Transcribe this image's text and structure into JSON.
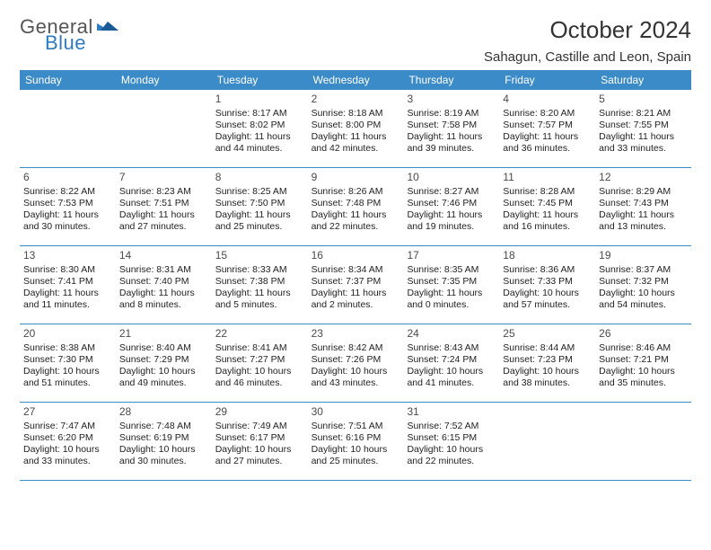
{
  "logo": {
    "line1": "General",
    "line2": "Blue"
  },
  "title": "October 2024",
  "location": "Sahagun, Castille and Leon, Spain",
  "colors": {
    "header_bg": "#3b8bc8",
    "header_text": "#ffffff",
    "row_border": "#3b8bc8",
    "title_color": "#333333",
    "body_text": "#222222",
    "logo_gray": "#555555",
    "logo_blue": "#2f7bbf",
    "background": "#ffffff"
  },
  "weekdays": [
    "Sunday",
    "Monday",
    "Tuesday",
    "Wednesday",
    "Thursday",
    "Friday",
    "Saturday"
  ],
  "weeks": [
    [
      null,
      null,
      {
        "n": "1",
        "sr": "Sunrise: 8:17 AM",
        "ss": "Sunset: 8:02 PM",
        "d1": "Daylight: 11 hours",
        "d2": "and 44 minutes."
      },
      {
        "n": "2",
        "sr": "Sunrise: 8:18 AM",
        "ss": "Sunset: 8:00 PM",
        "d1": "Daylight: 11 hours",
        "d2": "and 42 minutes."
      },
      {
        "n": "3",
        "sr": "Sunrise: 8:19 AM",
        "ss": "Sunset: 7:58 PM",
        "d1": "Daylight: 11 hours",
        "d2": "and 39 minutes."
      },
      {
        "n": "4",
        "sr": "Sunrise: 8:20 AM",
        "ss": "Sunset: 7:57 PM",
        "d1": "Daylight: 11 hours",
        "d2": "and 36 minutes."
      },
      {
        "n": "5",
        "sr": "Sunrise: 8:21 AM",
        "ss": "Sunset: 7:55 PM",
        "d1": "Daylight: 11 hours",
        "d2": "and 33 minutes."
      }
    ],
    [
      {
        "n": "6",
        "sr": "Sunrise: 8:22 AM",
        "ss": "Sunset: 7:53 PM",
        "d1": "Daylight: 11 hours",
        "d2": "and 30 minutes."
      },
      {
        "n": "7",
        "sr": "Sunrise: 8:23 AM",
        "ss": "Sunset: 7:51 PM",
        "d1": "Daylight: 11 hours",
        "d2": "and 27 minutes."
      },
      {
        "n": "8",
        "sr": "Sunrise: 8:25 AM",
        "ss": "Sunset: 7:50 PM",
        "d1": "Daylight: 11 hours",
        "d2": "and 25 minutes."
      },
      {
        "n": "9",
        "sr": "Sunrise: 8:26 AM",
        "ss": "Sunset: 7:48 PM",
        "d1": "Daylight: 11 hours",
        "d2": "and 22 minutes."
      },
      {
        "n": "10",
        "sr": "Sunrise: 8:27 AM",
        "ss": "Sunset: 7:46 PM",
        "d1": "Daylight: 11 hours",
        "d2": "and 19 minutes."
      },
      {
        "n": "11",
        "sr": "Sunrise: 8:28 AM",
        "ss": "Sunset: 7:45 PM",
        "d1": "Daylight: 11 hours",
        "d2": "and 16 minutes."
      },
      {
        "n": "12",
        "sr": "Sunrise: 8:29 AM",
        "ss": "Sunset: 7:43 PM",
        "d1": "Daylight: 11 hours",
        "d2": "and 13 minutes."
      }
    ],
    [
      {
        "n": "13",
        "sr": "Sunrise: 8:30 AM",
        "ss": "Sunset: 7:41 PM",
        "d1": "Daylight: 11 hours",
        "d2": "and 11 minutes."
      },
      {
        "n": "14",
        "sr": "Sunrise: 8:31 AM",
        "ss": "Sunset: 7:40 PM",
        "d1": "Daylight: 11 hours",
        "d2": "and 8 minutes."
      },
      {
        "n": "15",
        "sr": "Sunrise: 8:33 AM",
        "ss": "Sunset: 7:38 PM",
        "d1": "Daylight: 11 hours",
        "d2": "and 5 minutes."
      },
      {
        "n": "16",
        "sr": "Sunrise: 8:34 AM",
        "ss": "Sunset: 7:37 PM",
        "d1": "Daylight: 11 hours",
        "d2": "and 2 minutes."
      },
      {
        "n": "17",
        "sr": "Sunrise: 8:35 AM",
        "ss": "Sunset: 7:35 PM",
        "d1": "Daylight: 11 hours",
        "d2": "and 0 minutes."
      },
      {
        "n": "18",
        "sr": "Sunrise: 8:36 AM",
        "ss": "Sunset: 7:33 PM",
        "d1": "Daylight: 10 hours",
        "d2": "and 57 minutes."
      },
      {
        "n": "19",
        "sr": "Sunrise: 8:37 AM",
        "ss": "Sunset: 7:32 PM",
        "d1": "Daylight: 10 hours",
        "d2": "and 54 minutes."
      }
    ],
    [
      {
        "n": "20",
        "sr": "Sunrise: 8:38 AM",
        "ss": "Sunset: 7:30 PM",
        "d1": "Daylight: 10 hours",
        "d2": "and 51 minutes."
      },
      {
        "n": "21",
        "sr": "Sunrise: 8:40 AM",
        "ss": "Sunset: 7:29 PM",
        "d1": "Daylight: 10 hours",
        "d2": "and 49 minutes."
      },
      {
        "n": "22",
        "sr": "Sunrise: 8:41 AM",
        "ss": "Sunset: 7:27 PM",
        "d1": "Daylight: 10 hours",
        "d2": "and 46 minutes."
      },
      {
        "n": "23",
        "sr": "Sunrise: 8:42 AM",
        "ss": "Sunset: 7:26 PM",
        "d1": "Daylight: 10 hours",
        "d2": "and 43 minutes."
      },
      {
        "n": "24",
        "sr": "Sunrise: 8:43 AM",
        "ss": "Sunset: 7:24 PM",
        "d1": "Daylight: 10 hours",
        "d2": "and 41 minutes."
      },
      {
        "n": "25",
        "sr": "Sunrise: 8:44 AM",
        "ss": "Sunset: 7:23 PM",
        "d1": "Daylight: 10 hours",
        "d2": "and 38 minutes."
      },
      {
        "n": "26",
        "sr": "Sunrise: 8:46 AM",
        "ss": "Sunset: 7:21 PM",
        "d1": "Daylight: 10 hours",
        "d2": "and 35 minutes."
      }
    ],
    [
      {
        "n": "27",
        "sr": "Sunrise: 7:47 AM",
        "ss": "Sunset: 6:20 PM",
        "d1": "Daylight: 10 hours",
        "d2": "and 33 minutes."
      },
      {
        "n": "28",
        "sr": "Sunrise: 7:48 AM",
        "ss": "Sunset: 6:19 PM",
        "d1": "Daylight: 10 hours",
        "d2": "and 30 minutes."
      },
      {
        "n": "29",
        "sr": "Sunrise: 7:49 AM",
        "ss": "Sunset: 6:17 PM",
        "d1": "Daylight: 10 hours",
        "d2": "and 27 minutes."
      },
      {
        "n": "30",
        "sr": "Sunrise: 7:51 AM",
        "ss": "Sunset: 6:16 PM",
        "d1": "Daylight: 10 hours",
        "d2": "and 25 minutes."
      },
      {
        "n": "31",
        "sr": "Sunrise: 7:52 AM",
        "ss": "Sunset: 6:15 PM",
        "d1": "Daylight: 10 hours",
        "d2": "and 22 minutes."
      },
      null,
      null
    ]
  ]
}
